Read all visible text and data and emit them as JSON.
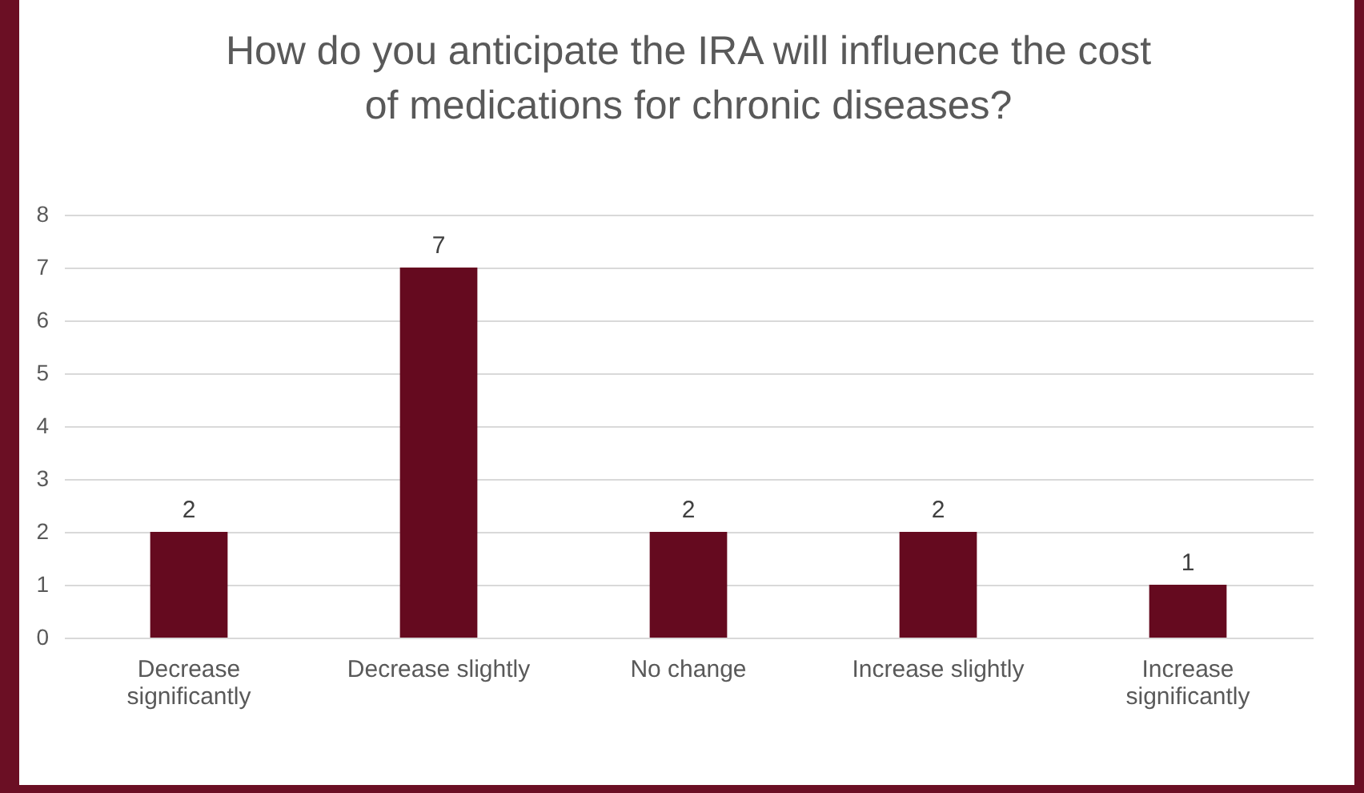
{
  "chart_data": {
    "type": "bar",
    "title": "How do you anticipate the IRA will influence the cost of medications for chronic diseases?",
    "categories": [
      "Decrease significantly",
      "Decrease slightly",
      "No change",
      "Increase slightly",
      "Increase significantly"
    ],
    "values": [
      2,
      7,
      2,
      2,
      1
    ],
    "color": "#650a1f",
    "ylim": [
      0,
      8
    ],
    "yticks": [
      0,
      1,
      2,
      3,
      4,
      5,
      6,
      7,
      8
    ],
    "grid": "y",
    "data_labels": true
  }
}
